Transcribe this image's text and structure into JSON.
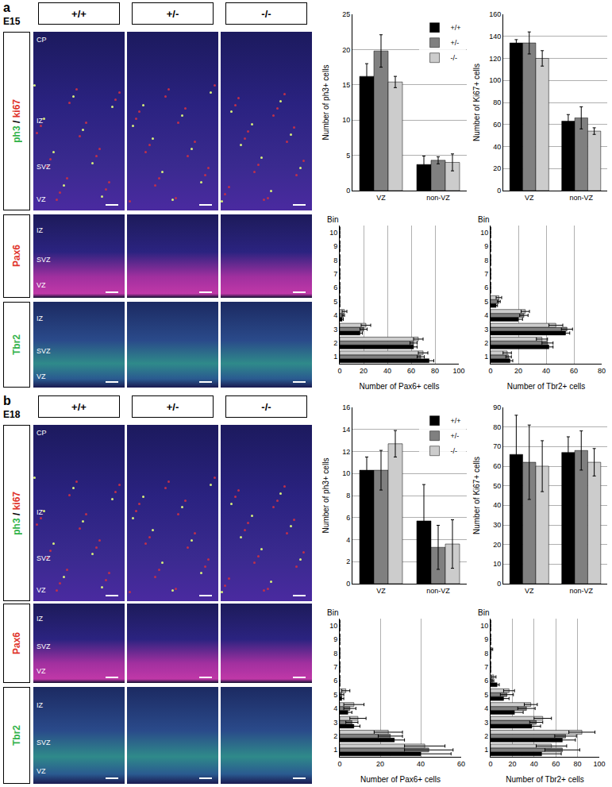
{
  "panels": [
    {
      "letter": "a",
      "stage": "E15",
      "genotypes": [
        "+/+",
        "+/-",
        "-/-"
      ],
      "rows": [
        {
          "label_parts": [
            {
              "text": "ph3",
              "color": "#33b34a"
            },
            {
              "text": " / ",
              "color": "#000000"
            },
            {
              "text": "ki67",
              "color": "#e0342a"
            }
          ],
          "zones": [
            "CP",
            "IZ",
            "SVZ",
            "VZ"
          ]
        },
        {
          "label_parts": [
            {
              "text": "Pax6",
              "color": "#e0342a"
            }
          ],
          "zones": [
            "IZ",
            "SVZ",
            "VZ"
          ]
        },
        {
          "label_parts": [
            {
              "text": "Tbr2",
              "color": "#33b34a"
            }
          ],
          "zones": [
            "IZ",
            "SVZ",
            "VZ"
          ]
        }
      ]
    },
    {
      "letter": "b",
      "stage": "E18",
      "genotypes": [
        "+/+",
        "+/-",
        "-/-"
      ],
      "rows": [
        {
          "label_parts": [
            {
              "text": "ph3",
              "color": "#33b34a"
            },
            {
              "text": " / ",
              "color": "#000000"
            },
            {
              "text": "ki67",
              "color": "#e0342a"
            }
          ],
          "zones": [
            "CP",
            "IZ",
            "SVZ",
            "VZ"
          ]
        },
        {
          "label_parts": [
            {
              "text": "Pax6",
              "color": "#e0342a"
            }
          ],
          "zones": [
            "IZ",
            "SVZ",
            "VZ"
          ]
        },
        {
          "label_parts": [
            {
              "text": "Tbr2",
              "color": "#33b34a"
            }
          ],
          "zones": [
            "IZ",
            "SVZ",
            "VZ"
          ]
        }
      ]
    }
  ],
  "chart_data": [
    {
      "type": "bar",
      "ylabel": "Number of ph3+ cells",
      "categories": [
        "VZ",
        "non-VZ"
      ],
      "series": [
        {
          "name": "+/+",
          "color": "#000000",
          "values": [
            16.2,
            3.7
          ],
          "errors": [
            1.8,
            1.2
          ]
        },
        {
          "name": "+/-",
          "color": "#808080",
          "values": [
            19.8,
            4.3
          ],
          "errors": [
            2.3,
            0.5
          ]
        },
        {
          "name": "-/-",
          "color": "#cccccc",
          "values": [
            15.4,
            4.0
          ],
          "errors": [
            0.8,
            1.2
          ]
        }
      ],
      "ylim": [
        0,
        25
      ],
      "yticks": [
        0,
        5,
        10,
        15,
        20,
        25
      ],
      "grid": true,
      "legend": "top right"
    },
    {
      "type": "bar",
      "ylabel": "Number of Ki67+ cells",
      "categories": [
        "VZ",
        "non-VZ"
      ],
      "series": [
        {
          "name": "+/+",
          "color": "#000000",
          "values": [
            134,
            63
          ],
          "errors": [
            3,
            6
          ]
        },
        {
          "name": "+/-",
          "color": "#808080",
          "values": [
            134,
            66
          ],
          "errors": [
            10,
            10
          ]
        },
        {
          "name": "-/-",
          "color": "#cccccc",
          "values": [
            120,
            54
          ],
          "errors": [
            7,
            3
          ]
        }
      ],
      "ylim": [
        0,
        160
      ],
      "yticks": [
        0,
        20,
        40,
        60,
        80,
        100,
        120,
        140,
        160
      ],
      "grid": true
    },
    {
      "type": "bar",
      "orientation": "horizontal",
      "title": "Bin",
      "xlabel": "Number of Pax6+ cells",
      "categories": [
        1,
        2,
        3,
        4,
        5,
        6,
        7,
        8,
        9,
        10
      ],
      "series": [
        {
          "name": "+/+",
          "color": "#000000",
          "values": [
            75,
            62,
            17,
            2,
            0,
            0,
            0,
            0,
            0,
            0
          ],
          "errors": [
            4,
            3,
            2,
            1,
            0,
            0,
            0,
            0,
            0,
            0
          ]
        },
        {
          "name": "+/-",
          "color": "#808080",
          "values": [
            68,
            62,
            20,
            3,
            0,
            0,
            0,
            0,
            0,
            0
          ],
          "errors": [
            3,
            3,
            3,
            1,
            0,
            0,
            0,
            0,
            0,
            0
          ]
        },
        {
          "name": "-/-",
          "color": "#cccccc",
          "values": [
            70,
            66,
            22,
            4,
            0,
            0,
            0,
            0,
            0,
            0
          ],
          "errors": [
            4,
            4,
            4,
            2,
            0,
            0,
            0,
            0,
            0,
            0
          ]
        }
      ],
      "xlim": [
        0,
        100
      ],
      "xticks": [
        0,
        20,
        40,
        60,
        80,
        100
      ],
      "grid": true
    },
    {
      "type": "bar",
      "orientation": "horizontal",
      "title": "Bin",
      "xlabel": "Number of Tbr2+ cells",
      "categories": [
        1,
        2,
        3,
        4,
        5,
        6,
        7,
        8,
        9,
        10
      ],
      "series": [
        {
          "name": "+/+",
          "color": "#000000",
          "values": [
            14,
            42,
            54,
            20,
            4,
            0,
            0,
            0,
            0,
            0
          ],
          "errors": [
            2,
            3,
            3,
            3,
            1,
            0,
            0,
            0,
            0,
            0
          ]
        },
        {
          "name": "+/-",
          "color": "#808080",
          "values": [
            13,
            41,
            55,
            24,
            6,
            0,
            0,
            0,
            0,
            0
          ],
          "errors": [
            2,
            4,
            4,
            3,
            1,
            0,
            0,
            0,
            0,
            0
          ]
        },
        {
          "name": "-/-",
          "color": "#cccccc",
          "values": [
            12,
            37,
            47,
            25,
            6,
            0,
            0,
            0,
            0,
            0
          ],
          "errors": [
            3,
            4,
            5,
            3,
            2,
            0,
            0,
            0,
            0,
            0
          ]
        }
      ],
      "xlim": [
        0,
        80
      ],
      "xticks": [
        0,
        20,
        40,
        60,
        80
      ],
      "grid": true
    },
    {
      "type": "bar",
      "ylabel": "Number of ph3+ cells",
      "categories": [
        "VZ",
        "non-VZ"
      ],
      "series": [
        {
          "name": "+/+",
          "color": "#000000",
          "values": [
            10.3,
            5.7
          ],
          "errors": [
            1.2,
            3.3
          ]
        },
        {
          "name": "+/-",
          "color": "#808080",
          "values": [
            10.3,
            3.3
          ],
          "errors": [
            1.8,
            2.0
          ]
        },
        {
          "name": "-/-",
          "color": "#cccccc",
          "values": [
            12.7,
            3.6
          ],
          "errors": [
            1.2,
            2.2
          ]
        }
      ],
      "ylim": [
        0,
        16
      ],
      "yticks": [
        0,
        2,
        4,
        6,
        8,
        10,
        12,
        14,
        16
      ],
      "grid": true,
      "legend": "top right"
    },
    {
      "type": "bar",
      "ylabel": "Number of Ki67+ cells",
      "categories": [
        "VZ",
        "non-VZ"
      ],
      "series": [
        {
          "name": "+/+",
          "color": "#000000",
          "values": [
            66,
            67
          ],
          "errors": [
            20,
            8
          ]
        },
        {
          "name": "+/-",
          "color": "#808080",
          "values": [
            62,
            68
          ],
          "errors": [
            19,
            10
          ]
        },
        {
          "name": "-/-",
          "color": "#cccccc",
          "values": [
            60,
            62
          ],
          "errors": [
            13,
            7
          ]
        }
      ],
      "ylim": [
        0,
        90
      ],
      "yticks": [
        0,
        10,
        20,
        30,
        40,
        50,
        60,
        70,
        80,
        90
      ],
      "grid": true
    },
    {
      "type": "bar",
      "orientation": "horizontal",
      "title": "Bin",
      "xlabel": "Number of Pax6+ cells",
      "categories": [
        1,
        2,
        3,
        4,
        5,
        6,
        7,
        8,
        9,
        10
      ],
      "series": [
        {
          "name": "+/+",
          "color": "#000000",
          "values": [
            40,
            27,
            7,
            4,
            1,
            0,
            0,
            0,
            0,
            0
          ],
          "errors": [
            15,
            5,
            3,
            2,
            1,
            0,
            0,
            0,
            0,
            0
          ]
        },
        {
          "name": "+/-",
          "color": "#808080",
          "values": [
            44,
            25,
            6,
            5,
            1,
            0,
            0,
            0,
            0,
            0
          ],
          "errors": [
            12,
            6,
            3,
            3,
            1,
            0,
            0,
            0,
            0,
            0
          ]
        },
        {
          "name": "-/-",
          "color": "#cccccc",
          "values": [
            42,
            24,
            9,
            7,
            3,
            0,
            0,
            0,
            0,
            0
          ],
          "errors": [
            10,
            7,
            4,
            5,
            2,
            0,
            0,
            0,
            0,
            0
          ]
        }
      ],
      "xlim": [
        0,
        60
      ],
      "xticks": [
        0,
        20,
        40,
        60
      ],
      "grid": true
    },
    {
      "type": "bar",
      "orientation": "horizontal",
      "title": "Bin",
      "xlabel": "Number of Tbr2+ cells",
      "categories": [
        1,
        2,
        3,
        4,
        5,
        6,
        7,
        8,
        9,
        10
      ],
      "series": [
        {
          "name": "+/+",
          "color": "#000000",
          "values": [
            47,
            66,
            38,
            22,
            12,
            6,
            0,
            0,
            0,
            0
          ],
          "errors": [
            18,
            12,
            8,
            8,
            5,
            2,
            0,
            0,
            0,
            0
          ]
        },
        {
          "name": "+/-",
          "color": "#808080",
          "values": [
            66,
            69,
            42,
            33,
            15,
            2,
            0,
            0,
            0,
            0
          ],
          "errors": [
            16,
            10,
            6,
            8,
            6,
            1,
            0,
            0,
            0,
            0
          ]
        },
        {
          "name": "-/-",
          "color": "#cccccc",
          "values": [
            56,
            84,
            48,
            37,
            17,
            3,
            0,
            1,
            0,
            0
          ],
          "errors": [
            14,
            12,
            8,
            6,
            5,
            2,
            0,
            1,
            0,
            0
          ]
        }
      ],
      "xlim": [
        0,
        100
      ],
      "xticks": [
        0,
        20,
        40,
        60,
        80,
        100
      ],
      "grid": true
    }
  ]
}
